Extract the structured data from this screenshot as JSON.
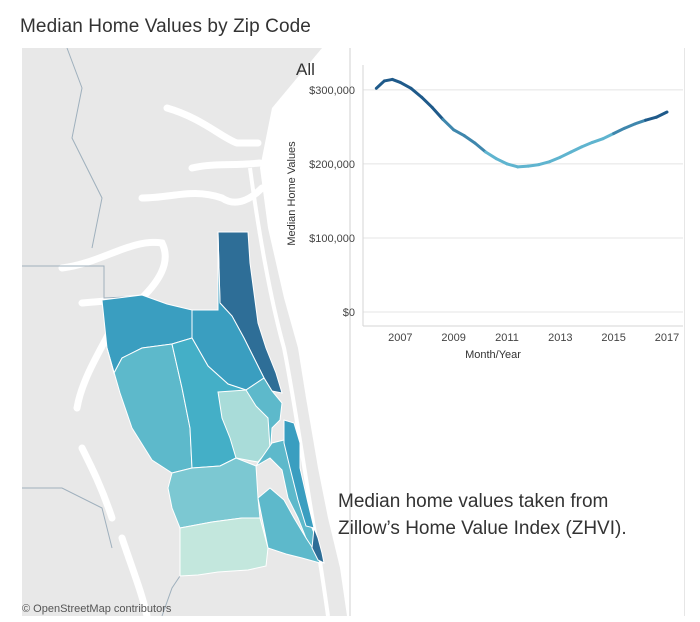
{
  "title": "Median Home Values by Zip Code",
  "attribution": "© OpenStreetMap contributors",
  "caption_line1": "Median home values taken from",
  "caption_line2": "Zillow’s Home Value Index (ZHVI).",
  "map": {
    "background_color": "#e8e8e8",
    "water_color": "#ffffff",
    "border_color": "#9fb0bd",
    "zip_fill_colors": [
      "#2e6e97",
      "#3a9ec0",
      "#44afc7",
      "#5db9cb",
      "#7cc8d2",
      "#a9dcd9",
      "#c3e7dd"
    ]
  },
  "chart_data": {
    "type": "line",
    "title": "All",
    "xlabel": "Month/Year",
    "ylabel": "Median Home Values",
    "x_ticks": [
      "2007",
      "2009",
      "2011",
      "2013",
      "2015",
      "2017"
    ],
    "y_ticks": [
      "$0",
      "$100,000",
      "$200,000",
      "$300,000"
    ],
    "xlim": [
      2005.6,
      2017.6
    ],
    "ylim": [
      0,
      320000
    ],
    "series": [
      {
        "name": "All",
        "x": [
          2006.1,
          2006.4,
          2006.7,
          2007.0,
          2007.4,
          2007.8,
          2008.2,
          2008.6,
          2009.0,
          2009.4,
          2009.8,
          2010.2,
          2010.6,
          2011.0,
          2011.4,
          2011.8,
          2012.2,
          2012.6,
          2013.0,
          2013.4,
          2013.8,
          2014.2,
          2014.6,
          2015.0,
          2015.4,
          2015.8,
          2016.2,
          2016.6,
          2017.0
        ],
        "values": [
          302000,
          312000,
          314000,
          310000,
          302000,
          290000,
          276000,
          260000,
          246000,
          238000,
          228000,
          216000,
          207000,
          200000,
          196000,
          197000,
          199000,
          203000,
          209000,
          216000,
          223000,
          229000,
          234000,
          241000,
          248000,
          254000,
          259000,
          263000,
          270000
        ]
      }
    ],
    "colors": [
      "#1f5a8a",
      "#3f87ad",
      "#5fb4cf",
      "#7fcde0"
    ]
  }
}
